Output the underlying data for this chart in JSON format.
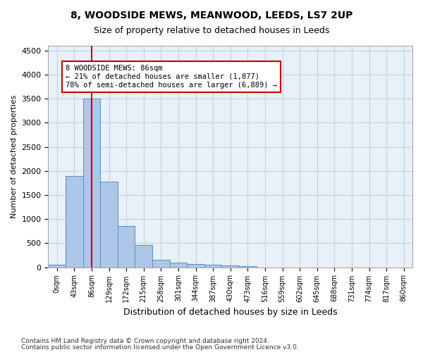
{
  "title": "8, WOODSIDE MEWS, MEANWOOD, LEEDS, LS7 2UP",
  "subtitle": "Size of property relative to detached houses in Leeds",
  "xlabel": "Distribution of detached houses by size in Leeds",
  "ylabel": "Number of detached properties",
  "bar_color": "#aec6e8",
  "bar_edge_color": "#5a8fc0",
  "property_line_color": "#cc0000",
  "property_bin_index": 2,
  "annotation_title": "8 WOODSIDE MEWS: 86sqm",
  "annotation_line1": "← 21% of detached houses are smaller (1,877)",
  "annotation_line2": "78% of semi-detached houses are larger (6,889) →",
  "bin_labels": [
    "0sqm",
    "43sqm",
    "86sqm",
    "129sqm",
    "172sqm",
    "215sqm",
    "258sqm",
    "301sqm",
    "344sqm",
    "387sqm",
    "430sqm",
    "473sqm",
    "516sqm",
    "559sqm",
    "602sqm",
    "645sqm",
    "688sqm",
    "731sqm",
    "774sqm",
    "817sqm",
    "860sqm"
  ],
  "bin_values": [
    50,
    1900,
    3500,
    1780,
    850,
    460,
    160,
    100,
    65,
    55,
    35,
    30,
    0,
    0,
    0,
    0,
    0,
    0,
    0,
    0,
    0
  ],
  "ylim": [
    0,
    4600
  ],
  "yticks": [
    0,
    500,
    1000,
    1500,
    2000,
    2500,
    3000,
    3500,
    4000,
    4500
  ],
  "ax_facecolor": "#e8f0f8",
  "background_color": "#ffffff",
  "grid_color": "#c8d0e0",
  "footer_line1": "Contains HM Land Registry data © Crown copyright and database right 2024.",
  "footer_line2": "Contains public sector information licensed under the Open Government Licence v3.0."
}
